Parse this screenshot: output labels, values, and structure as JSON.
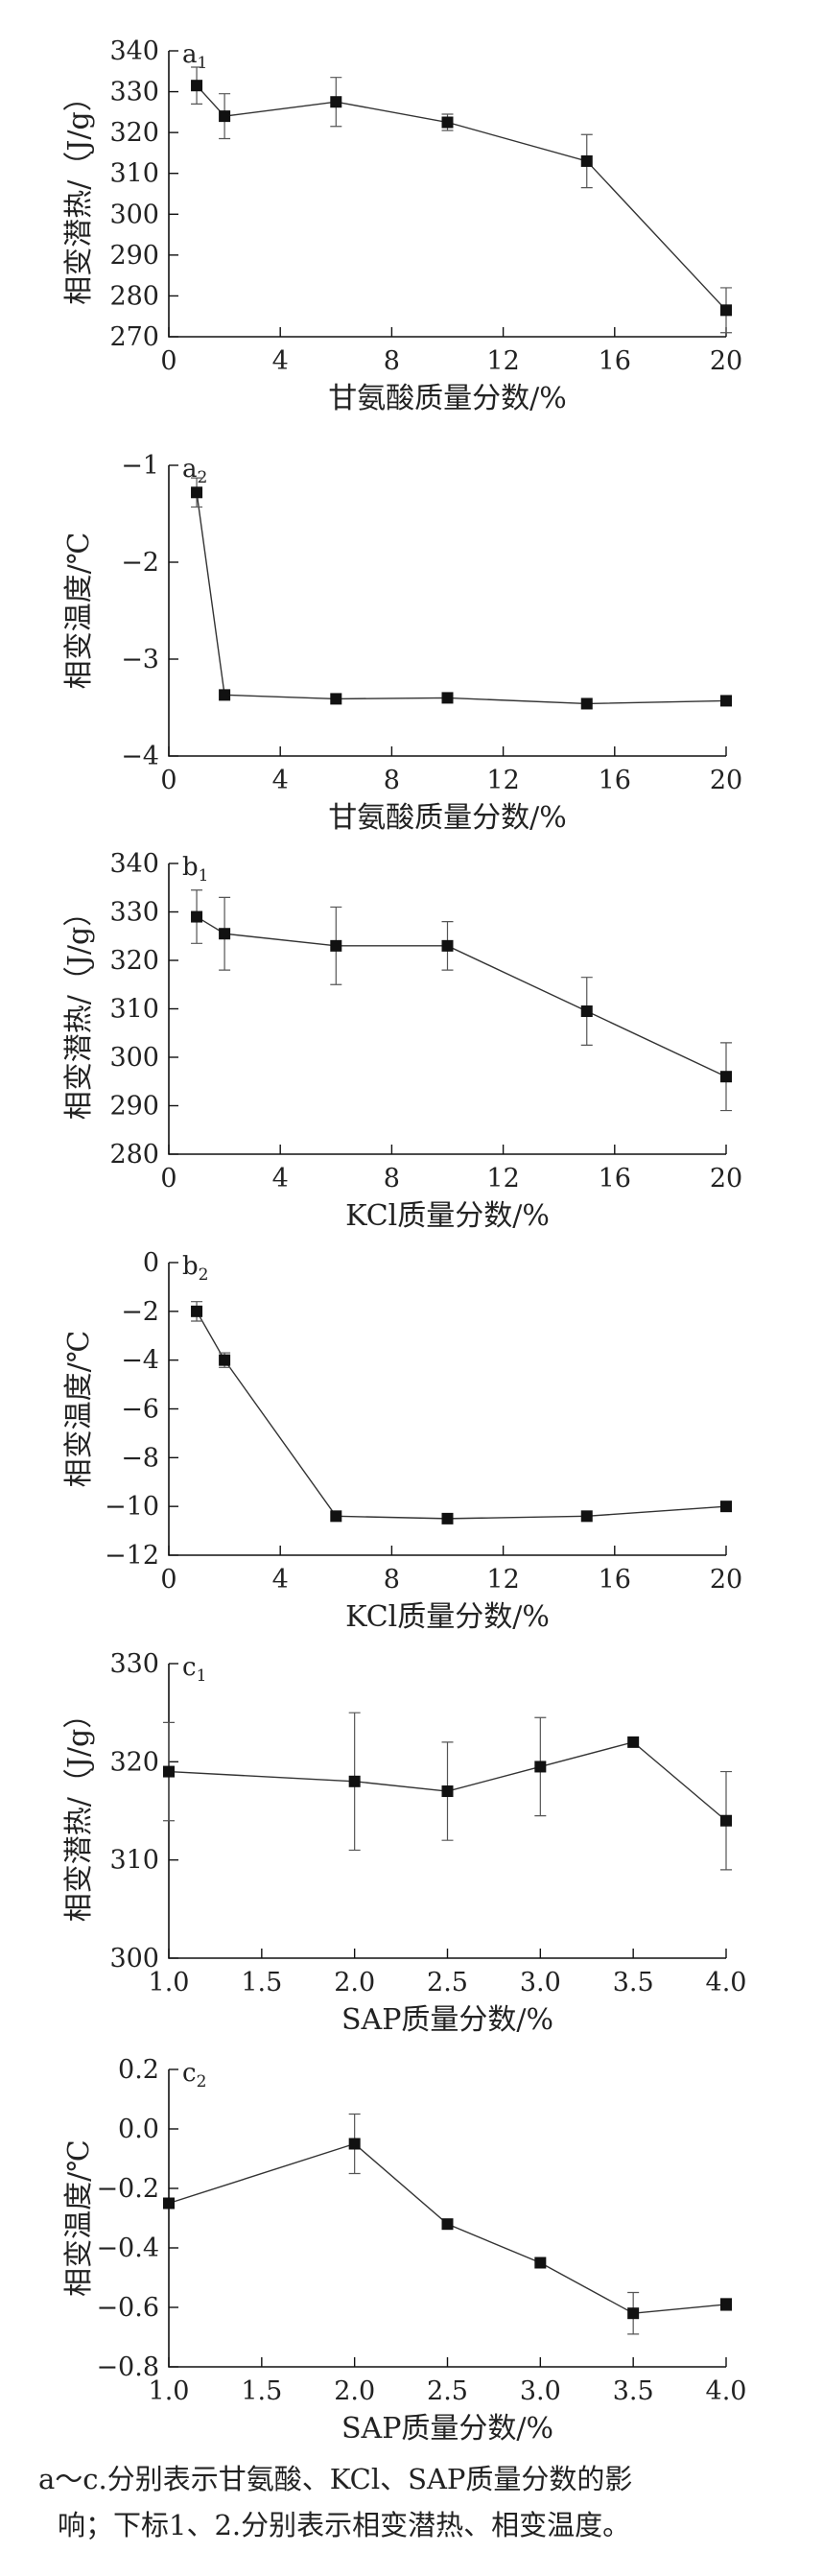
{
  "caption": {
    "line1": "a～c.分别表示甘氨酸、KCl、SAP质量分数的影",
    "line2": "响；下标1、2.分别表示相变潜热、相变温度。"
  },
  "chart_data": [
    {
      "id": "a1",
      "type": "line",
      "panel_label": "a",
      "panel_sub": "1",
      "xlabel": "甘氨酸质量分数/%",
      "ylabel": "相变潜热/（J/g）",
      "xlim": [
        0,
        20
      ],
      "ylim": [
        270,
        340
      ],
      "xticks": [
        0,
        4,
        8,
        12,
        16,
        20
      ],
      "yticks": [
        270,
        280,
        290,
        300,
        310,
        320,
        330,
        340
      ],
      "xtick_labels": [
        "0",
        "4",
        "8",
        "12",
        "16",
        "20"
      ],
      "ytick_labels": [
        "270",
        "280",
        "290",
        "300",
        "310",
        "320",
        "330",
        "340"
      ],
      "x": [
        1,
        2,
        6,
        10,
        15,
        20
      ],
      "y": [
        331.5,
        324,
        327.5,
        322.5,
        313,
        276.5
      ],
      "err": [
        4.5,
        5.5,
        6,
        2,
        6.5,
        5.5
      ]
    },
    {
      "id": "a2",
      "type": "line",
      "panel_label": "a",
      "panel_sub": "2",
      "xlabel": "甘氨酸质量分数/%",
      "ylabel": "相变温度/℃",
      "xlim": [
        0,
        20
      ],
      "ylim": [
        -4,
        -1
      ],
      "xticks": [
        0,
        4,
        8,
        12,
        16,
        20
      ],
      "yticks": [
        -4,
        -3,
        -2,
        -1
      ],
      "xtick_labels": [
        "0",
        "4",
        "8",
        "12",
        "16",
        "20"
      ],
      "ytick_labels": [
        "−4",
        "−3",
        "−2",
        "−1"
      ],
      "x": [
        1,
        2,
        6,
        10,
        15,
        20
      ],
      "y": [
        -1.28,
        -3.37,
        -3.41,
        -3.4,
        -3.46,
        -3.43
      ],
      "err": [
        0.15,
        0,
        0,
        0,
        0,
        0
      ]
    },
    {
      "id": "b1",
      "type": "line",
      "panel_label": "b",
      "panel_sub": "1",
      "xlabel": "KCl质量分数/%",
      "ylabel": "相变潜热/（J/g）",
      "xlim": [
        0,
        20
      ],
      "ylim": [
        280,
        340
      ],
      "xticks": [
        0,
        4,
        8,
        12,
        16,
        20
      ],
      "yticks": [
        280,
        290,
        300,
        310,
        320,
        330,
        340
      ],
      "xtick_labels": [
        "0",
        "4",
        "8",
        "12",
        "16",
        "20"
      ],
      "ytick_labels": [
        "280",
        "290",
        "300",
        "310",
        "320",
        "330",
        "340"
      ],
      "x": [
        1,
        2,
        6,
        10,
        15,
        20
      ],
      "y": [
        329,
        325.5,
        323,
        323,
        309.5,
        296
      ],
      "err": [
        5.5,
        7.5,
        8,
        5,
        7,
        7
      ]
    },
    {
      "id": "b2",
      "type": "line",
      "panel_label": "b",
      "panel_sub": "2",
      "xlabel": "KCl质量分数/%",
      "ylabel": "相变温度/℃",
      "xlim": [
        0,
        20
      ],
      "ylim": [
        -12,
        0
      ],
      "xticks": [
        0,
        4,
        8,
        12,
        16,
        20
      ],
      "yticks": [
        -12,
        -10,
        -8,
        -6,
        -4,
        -2,
        0
      ],
      "xtick_labels": [
        "0",
        "4",
        "8",
        "12",
        "16",
        "20"
      ],
      "ytick_labels": [
        "−12",
        "−10",
        "−8",
        "−6",
        "−4",
        "−2",
        "0"
      ],
      "x": [
        1,
        2,
        6,
        10,
        15,
        20
      ],
      "y": [
        -2.0,
        -4.0,
        -10.4,
        -10.5,
        -10.4,
        -10.0
      ],
      "err": [
        0.4,
        0.3,
        0,
        0,
        0,
        0
      ]
    },
    {
      "id": "c1",
      "type": "line",
      "panel_label": "c",
      "panel_sub": "1",
      "xlabel": "SAP质量分数/%",
      "ylabel": "相变潜热/（J/g）",
      "xlim": [
        1.0,
        4.0
      ],
      "ylim": [
        300,
        330
      ],
      "xticks": [
        1.0,
        1.5,
        2.0,
        2.5,
        3.0,
        3.5,
        4.0
      ],
      "yticks": [
        300,
        310,
        320,
        330
      ],
      "xtick_labels": [
        "1.0",
        "1.5",
        "2.0",
        "2.5",
        "3.0",
        "3.5",
        "4.0"
      ],
      "ytick_labels": [
        "300",
        "310",
        "320",
        "330"
      ],
      "x": [
        1.0,
        2.0,
        2.5,
        3.0,
        3.5,
        4.0
      ],
      "y": [
        319,
        318,
        317,
        319.5,
        322,
        314
      ],
      "err": [
        5,
        7,
        5,
        5,
        0,
        5
      ]
    },
    {
      "id": "c2",
      "type": "line",
      "panel_label": "c",
      "panel_sub": "2",
      "xlabel": "SAP质量分数/%",
      "ylabel": "相变温度/℃",
      "xlim": [
        1.0,
        4.0
      ],
      "ylim": [
        -0.8,
        0.2
      ],
      "xticks": [
        1.0,
        1.5,
        2.0,
        2.5,
        3.0,
        3.5,
        4.0
      ],
      "yticks": [
        -0.8,
        -0.6,
        -0.4,
        -0.2,
        0.0,
        0.2
      ],
      "xtick_labels": [
        "1.0",
        "1.5",
        "2.0",
        "2.5",
        "3.0",
        "3.5",
        "4.0"
      ],
      "ytick_labels": [
        "−0.8",
        "−0.6",
        "−0.4",
        "−0.2",
        "0.0",
        "0.2"
      ],
      "x": [
        1.0,
        2.0,
        2.5,
        3.0,
        3.5,
        4.0
      ],
      "y": [
        -0.25,
        -0.05,
        -0.32,
        -0.45,
        -0.62,
        -0.59
      ],
      "err": [
        0,
        0.1,
        0,
        0,
        0.07,
        0.02
      ]
    }
  ]
}
